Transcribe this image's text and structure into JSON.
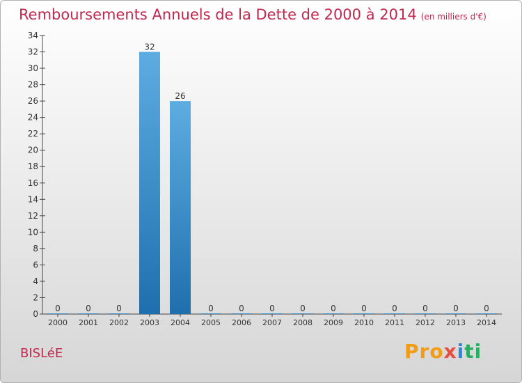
{
  "header": {
    "title": "Remboursements Annuels de la Dette de 2000 à 2014",
    "unit_note": "(en milliers d'€)"
  },
  "footer": {
    "commune": "BISLéE",
    "logo_text": "Proxiti"
  },
  "colors": {
    "title": "#c0284f",
    "bar_top": "#5dade2",
    "bar_bottom": "#1f6fae",
    "axis": "#444444"
  },
  "chart_data": {
    "type": "bar",
    "categories": [
      "2000",
      "2001",
      "2002",
      "2003",
      "2004",
      "2005",
      "2006",
      "2007",
      "2008",
      "2009",
      "2010",
      "2011",
      "2012",
      "2013",
      "2014"
    ],
    "values": [
      0,
      0,
      0,
      32,
      26,
      0,
      0,
      0,
      0,
      0,
      0,
      0,
      0,
      0,
      0
    ],
    "ylim": [
      0,
      34
    ],
    "yticks": [
      0,
      2,
      4,
      6,
      8,
      10,
      12,
      14,
      16,
      18,
      20,
      22,
      24,
      26,
      28,
      30,
      32,
      34
    ],
    "grid": false,
    "legend": "none"
  }
}
